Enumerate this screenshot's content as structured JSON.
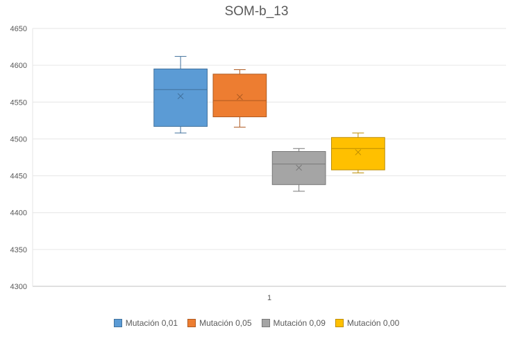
{
  "chart_data": {
    "type": "box",
    "title": "SOM-b_13",
    "xlabel": "",
    "ylabel": "",
    "categories": [
      "1"
    ],
    "ylim": [
      4300,
      4650
    ],
    "yticks": [
      4300,
      4350,
      4400,
      4450,
      4500,
      4550,
      4600,
      4650
    ],
    "grid": true,
    "legend_position": "bottom",
    "series": [
      {
        "name": "Mutación 0,01",
        "color": "#5b9bd5",
        "stroke": "#41719c",
        "min": 4508,
        "q1": 4517,
        "median": 4567,
        "q3": 4595,
        "max": 4612,
        "mean": 4558
      },
      {
        "name": "Mutación 0,05",
        "color": "#ed7d31",
        "stroke": "#ae5a21",
        "min": 4516,
        "q1": 4530,
        "median": 4552,
        "q3": 4588,
        "max": 4594,
        "mean": 4557
      },
      {
        "name": "Mutación 0,09",
        "color": "#a5a5a5",
        "stroke": "#787878",
        "min": 4429,
        "q1": 4438,
        "median": 4466,
        "q3": 4483,
        "max": 4487,
        "mean": 4461
      },
      {
        "name": "Mutación 0,00",
        "color": "#ffc000",
        "stroke": "#bc8c00",
        "min": 4454,
        "q1": 4458,
        "median": 4487,
        "q3": 4502,
        "max": 4508,
        "mean": 4482
      }
    ]
  }
}
